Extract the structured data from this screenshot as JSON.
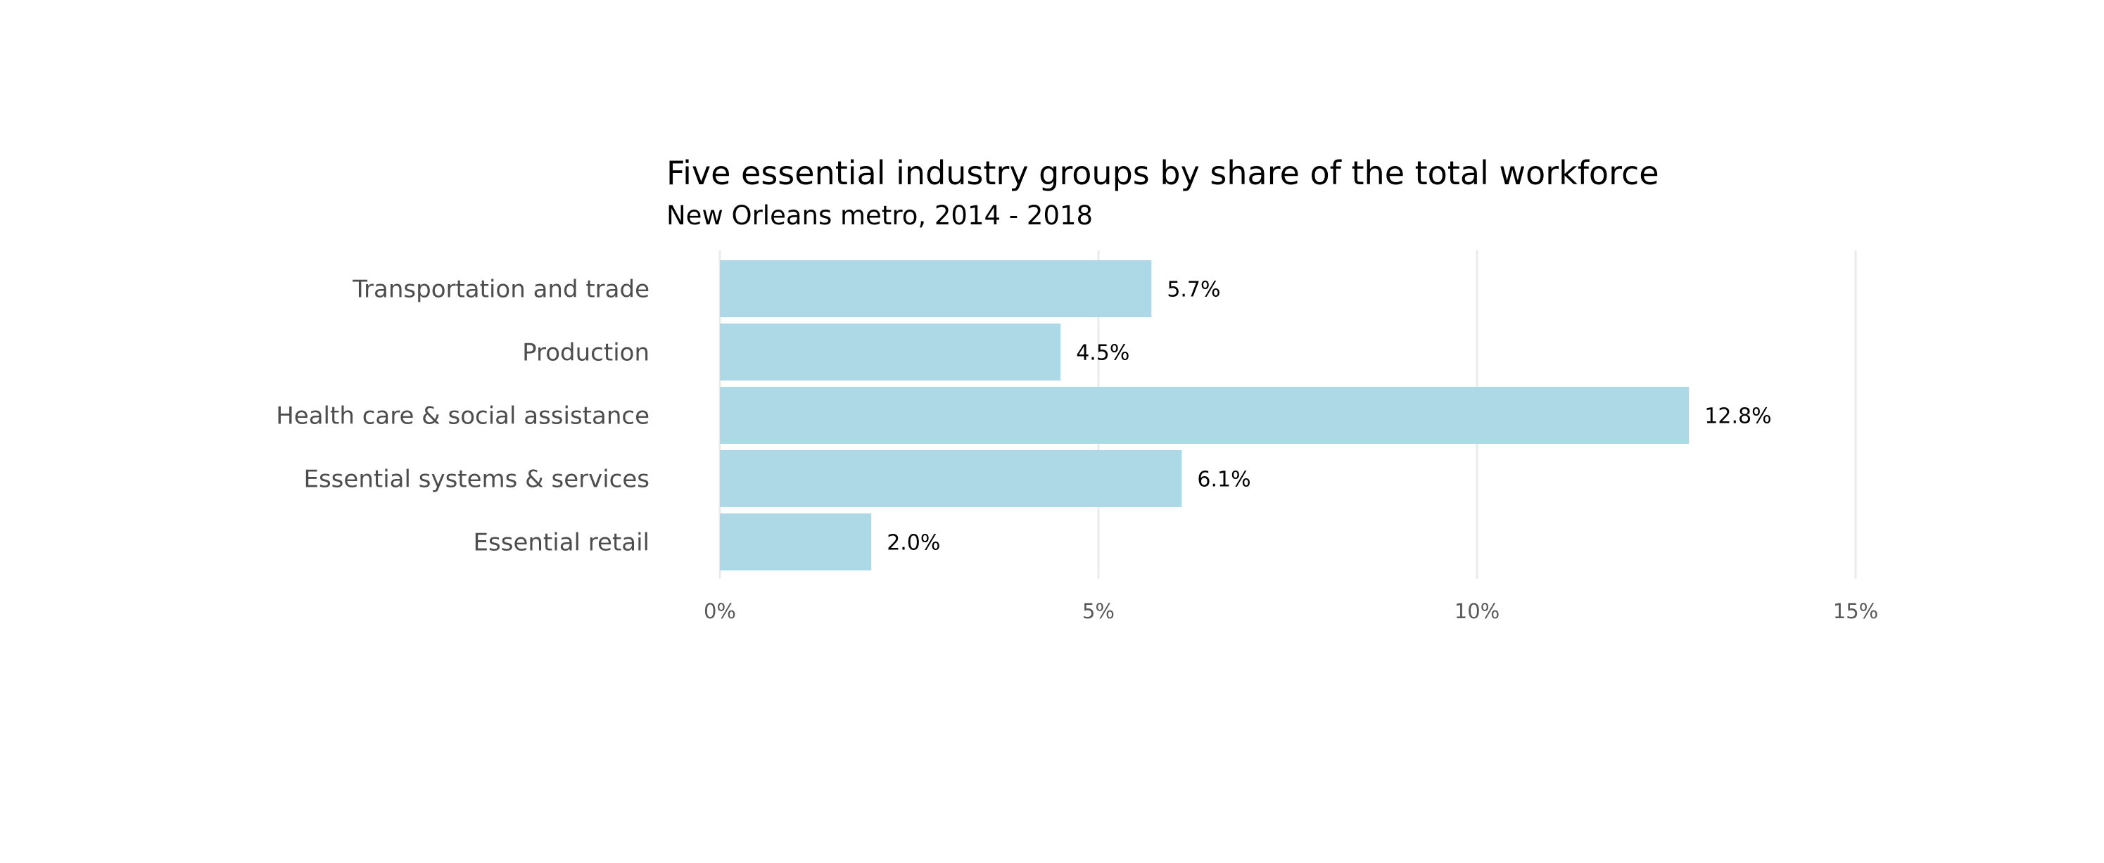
{
  "chart_data": {
    "type": "bar",
    "orientation": "horizontal",
    "title": "Five essential industry groups by share of the total workforce",
    "subtitle": "New Orleans metro, 2014 - 2018",
    "xlabel": "",
    "ylabel": "",
    "categories": [
      "Transportation and trade",
      "Production",
      "Health care & social assistance",
      "Essential systems & services",
      "Essential retail"
    ],
    "values": [
      5.7,
      4.5,
      12.8,
      6.1,
      2.0
    ],
    "value_labels": [
      "5.7%",
      "4.5%",
      "12.8%",
      "6.1%",
      "2.0%"
    ],
    "unit": "percent",
    "xlim": [
      0,
      15
    ],
    "x_ticks": [
      0,
      5,
      10,
      15
    ],
    "x_tick_labels": [
      "0%",
      "5%",
      "10%",
      "15%"
    ],
    "grid": "vertical-major",
    "legend": "none",
    "colors": {
      "bar": "#add8e6",
      "gridline": "#ebebeb",
      "category_text": "#4d4d4d",
      "tick_text": "#595959",
      "value_text": "#000000",
      "title_text": "#000000"
    }
  }
}
